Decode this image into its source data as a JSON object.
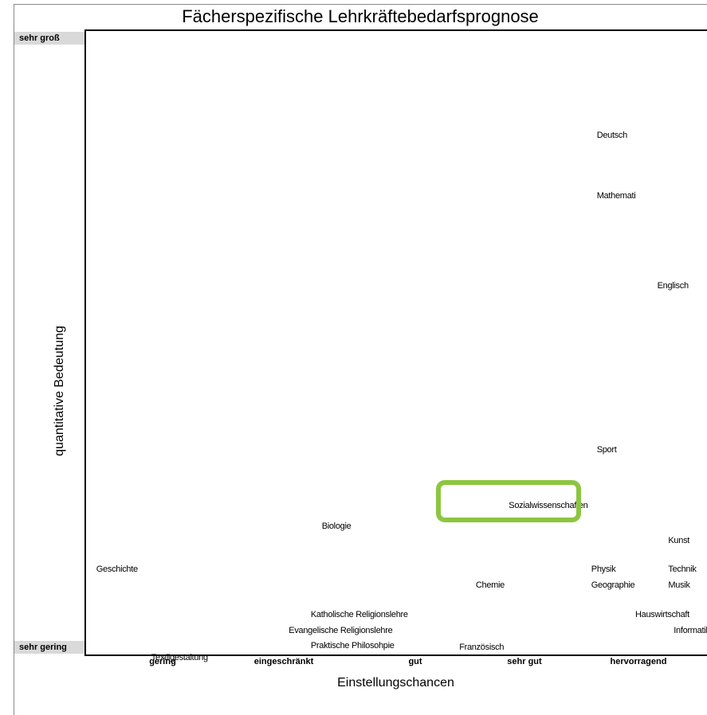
{
  "chart_data": {
    "type": "scatter",
    "title": "Fächerspezifische Lehrkräftebedarfsprognose",
    "xlabel": "Einstellungschancen",
    "ylabel": "quantitative Bedeutung",
    "x_ticks": [
      "gering",
      "eingeschränkt",
      "gut",
      "sehr gut",
      "hervorragend"
    ],
    "y_ticks": [
      "sehr gering",
      "sehr groß"
    ],
    "xlim": [
      0,
      5.5
    ],
    "ylim": [
      0,
      100
    ],
    "points": [
      {
        "label": "Deutsch",
        "x": 4.65,
        "y": 90.5
      },
      {
        "label": "Mathemati",
        "x": 4.65,
        "y": 79.8
      },
      {
        "label": "Englisch",
        "x": 5.2,
        "y": 63.9
      },
      {
        "label": "Sport",
        "x": 4.65,
        "y": 35.0
      },
      {
        "label": "Sozialwissenschaften",
        "x": 3.85,
        "y": 25.1
      },
      {
        "label": "Biologie",
        "x": 2.15,
        "y": 21.5
      },
      {
        "label": "Kunst",
        "x": 5.3,
        "y": 18.9
      },
      {
        "label": "Geschichte",
        "x": 0.1,
        "y": 13.9
      },
      {
        "label": "Physik",
        "x": 4.6,
        "y": 13.9
      },
      {
        "label": "Technik",
        "x": 5.3,
        "y": 13.9
      },
      {
        "label": "Chemie",
        "x": 3.55,
        "y": 11.1
      },
      {
        "label": "Geographie",
        "x": 4.6,
        "y": 11.1
      },
      {
        "label": "Musik",
        "x": 5.3,
        "y": 11.1
      },
      {
        "label": "Katholische Religionslehre",
        "x": 2.05,
        "y": 5.9
      },
      {
        "label": "Hauswirtschaft",
        "x": 5.0,
        "y": 5.9
      },
      {
        "label": "Evangelische Religionslehre",
        "x": 1.85,
        "y": 3.1
      },
      {
        "label": "Informatik",
        "x": 5.35,
        "y": 3.1
      },
      {
        "label": "Praktische Philosohpie",
        "x": 2.05,
        "y": 0.4
      },
      {
        "label": "Französisch",
        "x": 3.4,
        "y": 0.1
      },
      {
        "label": "Textilgestaltung",
        "x": 0.6,
        "y": -1.7
      }
    ],
    "highlight": "Sozialwissenschaften",
    "highlight_color": "#8cc63f",
    "grid": false,
    "legend": "none"
  }
}
